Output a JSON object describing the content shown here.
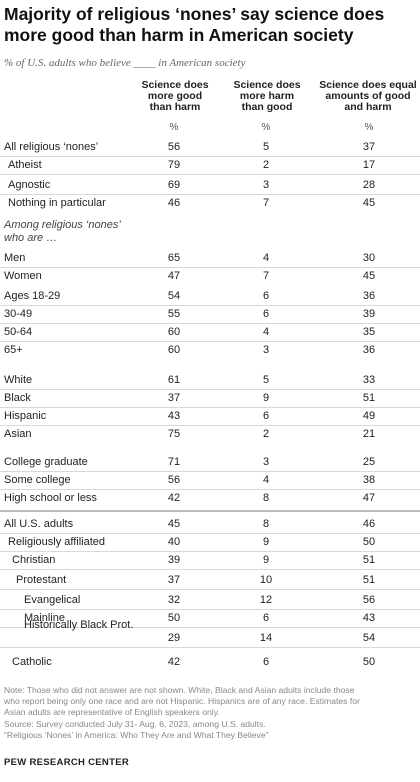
{
  "title": "Majority of religious ‘nones’ say science does more good than harm in American society",
  "subtitle": "% of U.S. adults who believe ____ in American society",
  "columns": [
    "Science does more good than harm",
    "Science does more harm than good",
    "Science does equal amounts of good and harm"
  ],
  "column_lines": [
    [
      "Science does",
      "more good",
      "than harm"
    ],
    [
      "Science does",
      "more harm",
      "than good"
    ],
    [
      "Science does equal",
      "amounts of good",
      "and harm"
    ]
  ],
  "unit_label": "%",
  "section_label": [
    "Among religious ‘nones’",
    "who are …"
  ],
  "chart_data": {
    "type": "table",
    "columns": [
      "Science does more good than harm",
      "Science does more harm than good",
      "Science does equal amounts of good and harm"
    ],
    "rows": [
      {
        "label": "All religious ‘nones’",
        "values": [
          56,
          5,
          37
        ]
      },
      {
        "label": "Atheist",
        "values": [
          79,
          2,
          17
        ]
      },
      {
        "label": "Agnostic",
        "values": [
          69,
          3,
          28
        ]
      },
      {
        "label": "Nothing in particular",
        "values": [
          46,
          7,
          45
        ]
      },
      {
        "label": "Men",
        "values": [
          65,
          4,
          30
        ]
      },
      {
        "label": "Women",
        "values": [
          47,
          7,
          45
        ]
      },
      {
        "label": "Ages 18-29",
        "values": [
          54,
          6,
          36
        ]
      },
      {
        "label": "30-49",
        "values": [
          55,
          6,
          39
        ]
      },
      {
        "label": "50-64",
        "values": [
          60,
          4,
          35
        ]
      },
      {
        "label": "65+",
        "values": [
          60,
          3,
          36
        ]
      },
      {
        "label": "White",
        "values": [
          61,
          5,
          33
        ]
      },
      {
        "label": "Black",
        "values": [
          37,
          9,
          51
        ]
      },
      {
        "label": "Hispanic",
        "values": [
          43,
          6,
          49
        ]
      },
      {
        "label": "Asian",
        "values": [
          75,
          2,
          21
        ]
      },
      {
        "label": "College graduate",
        "values": [
          71,
          3,
          25
        ]
      },
      {
        "label": "Some college",
        "values": [
          56,
          4,
          38
        ]
      },
      {
        "label": "High school or less",
        "values": [
          42,
          8,
          47
        ]
      },
      {
        "label": "All U.S. adults",
        "values": [
          45,
          8,
          46
        ]
      },
      {
        "label": "Religiously affiliated",
        "values": [
          40,
          9,
          50
        ]
      },
      {
        "label": "Christian",
        "values": [
          39,
          9,
          51
        ]
      },
      {
        "label": "Protestant",
        "values": [
          37,
          10,
          51
        ]
      },
      {
        "label": "Evangelical",
        "values": [
          32,
          12,
          56
        ]
      },
      {
        "label": "Mainline",
        "values": [
          50,
          6,
          43
        ]
      },
      {
        "label": "Historically Black Prot.",
        "values": [
          29,
          14,
          54
        ]
      },
      {
        "label": "Catholic",
        "values": [
          42,
          6,
          50
        ]
      }
    ]
  },
  "note_lines": [
    "Note: Those who did not answer are not shown. White, Black and Asian adults include those",
    "who report being only one race and are not Hispanic. Hispanics are of any race. Estimates for",
    "Asian adults are representative of English speakers only."
  ],
  "source_lines": [
    "Source: Survey conducted July 31- Aug. 6, 2023, among U.S. adults.",
    "“Religious ‘Nones’ in America: Who They Are and What They Believe”"
  ],
  "logo_text": "PEW RESEARCH CENTER",
  "colors": {
    "text": "#222222",
    "muted": "#888888",
    "rule": "#d9d9d9"
  }
}
